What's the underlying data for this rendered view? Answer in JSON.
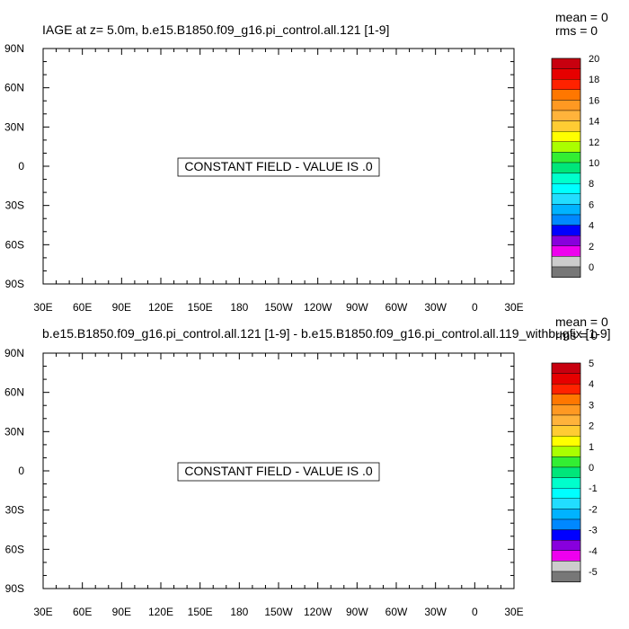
{
  "panels": [
    {
      "title": "IAGE at z=   5.0m, b.e15.B1850.f09_g16.pi_control.all.121 [1-9]",
      "mean": "mean = 0",
      "rms": "rms = 0",
      "message": "CONSTANT FIELD - VALUE IS .0",
      "colorbar": {
        "labels": [
          "20",
          "18",
          "16",
          "14",
          "12",
          "10",
          "8",
          "6",
          "4",
          "2",
          "0"
        ],
        "colors": [
          "#c8000f",
          "#e60000",
          "#ff2200",
          "#ff7700",
          "#ff9922",
          "#ffb33b",
          "#ffcc33",
          "#ffff00",
          "#aaff00",
          "#33ee33",
          "#00e67a",
          "#00ffcc",
          "#00ffff",
          "#22ddff",
          "#00b3ff",
          "#0088ff",
          "#0000ff",
          "#8800dd",
          "#ee00ee",
          "#cccccc",
          "#777777"
        ]
      }
    },
    {
      "title": "b.e15.B1850.f09_g16.pi_control.all.121 [1-9] - b.e15.B1850.f09_g16.pi_control.all.119_withbugfix [1-9]",
      "mean": "mean = 0",
      "rms": "rms = 0",
      "message": "CONSTANT FIELD - VALUE IS .0",
      "colorbar": {
        "labels": [
          "5",
          "4",
          "3",
          "2",
          "1",
          "0",
          "-1",
          "-2",
          "-3",
          "-4",
          "-5"
        ],
        "colors": [
          "#c8000f",
          "#e60000",
          "#ff2200",
          "#ff7700",
          "#ff9922",
          "#ffb33b",
          "#ffcc33",
          "#ffff00",
          "#aaff00",
          "#33ee33",
          "#00e67a",
          "#00ffcc",
          "#00ffff",
          "#22ddff",
          "#00b3ff",
          "#0088ff",
          "#0000ff",
          "#8800dd",
          "#ee00ee",
          "#cccccc",
          "#777777"
        ]
      }
    }
  ],
  "chart_data": [
    {
      "type": "heatmap",
      "title": "IAGE at z=   5.0m, b.e15.B1850.f09_g16.pi_control.all.121 [1-9]",
      "x_tick_labels": [
        "30E",
        "60E",
        "90E",
        "120E",
        "150E",
        "180",
        "150W",
        "120W",
        "90W",
        "60W",
        "30W",
        "0",
        "30E"
      ],
      "y_tick_labels": [
        "90N",
        "60N",
        "30N",
        "0",
        "30S",
        "60S",
        "90S"
      ],
      "xlim": [
        30,
        390
      ],
      "ylim": [
        -90,
        90
      ],
      "field_value": 0,
      "mean": 0,
      "rms": 0,
      "colorbar_levels": [
        0,
        2,
        4,
        6,
        8,
        10,
        12,
        14,
        16,
        18,
        20
      ]
    },
    {
      "type": "heatmap",
      "title": "b.e15.B1850.f09_g16.pi_control.all.121 [1-9] - b.e15.B1850.f09_g16.pi_control.all.119_withbugfix [1-9]",
      "x_tick_labels": [
        "30E",
        "60E",
        "90E",
        "120E",
        "150E",
        "180",
        "150W",
        "120W",
        "90W",
        "60W",
        "30W",
        "0",
        "30E"
      ],
      "y_tick_labels": [
        "90N",
        "60N",
        "30N",
        "0",
        "30S",
        "60S",
        "90S"
      ],
      "xlim": [
        30,
        390
      ],
      "ylim": [
        -90,
        90
      ],
      "field_value": 0,
      "mean": 0,
      "rms": 0,
      "colorbar_levels": [
        -5,
        -4,
        -3,
        -2,
        -1,
        0,
        1,
        2,
        3,
        4,
        5
      ]
    }
  ]
}
